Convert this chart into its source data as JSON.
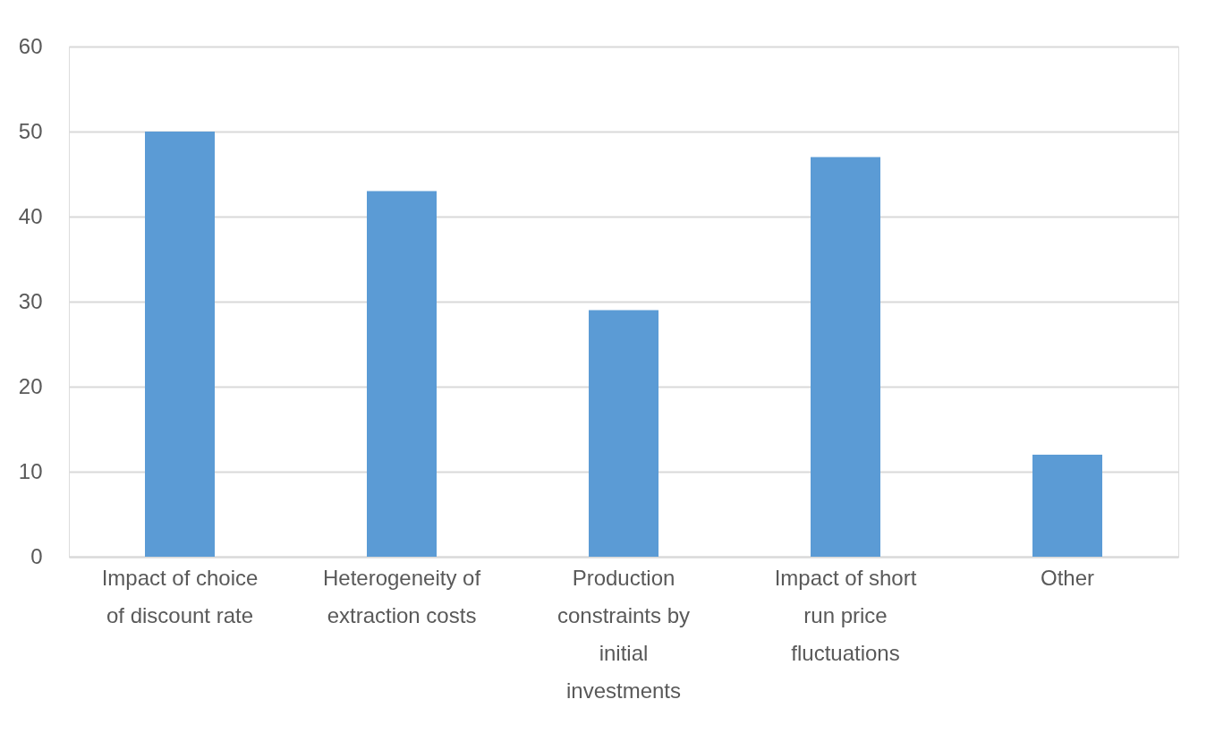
{
  "chart_data": {
    "type": "bar",
    "categories": [
      "Impact of choice of discount rate",
      "Heterogeneity of extraction costs",
      "Production constraints by initial investments",
      "Impact of short run price fluctuations",
      "Other"
    ],
    "values": [
      50,
      43,
      29,
      47,
      12
    ],
    "color": "#5b9bd5",
    "ylim": [
      0,
      60
    ],
    "yticks": [
      0,
      10,
      20,
      30,
      40,
      50,
      60
    ],
    "grid": "y"
  }
}
